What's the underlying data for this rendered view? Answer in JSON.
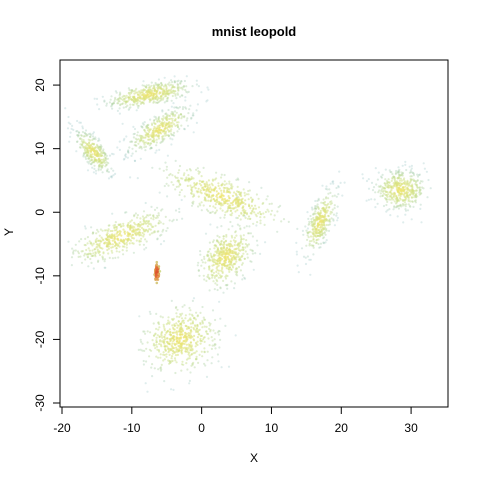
{
  "chart_data": {
    "type": "scatter",
    "title": "mnist leopold",
    "xlabel": "X",
    "ylabel": "Y",
    "xlim": [
      -20,
      35
    ],
    "ylim": [
      -30,
      23
    ],
    "x_ticks": [
      -20,
      -10,
      0,
      10,
      20,
      30
    ],
    "y_ticks": [
      -30,
      -20,
      -10,
      0,
      10,
      20
    ],
    "x_tick_labels": [
      "-20",
      "-10",
      "0",
      "10",
      "20",
      "30"
    ],
    "y_tick_labels": [
      "-30",
      "-20",
      "-10",
      "0",
      "10",
      "20"
    ],
    "grid": false,
    "legend": "none",
    "colors": {
      "low_density": "#7fb8b8",
      "mid_density": "#c9e08a",
      "high_density": "#f0e570",
      "peak_density": "#d94a2a"
    },
    "clusters": [
      {
        "cx": -7.5,
        "cy": 18.5,
        "sx": 5.5,
        "sy": 1.6,
        "angle": 12,
        "n": 420,
        "core": 0.7
      },
      {
        "cx": -6.0,
        "cy": 13.0,
        "sx": 5.0,
        "sy": 1.9,
        "angle": 35,
        "n": 360,
        "core": 0.75
      },
      {
        "cx": -15.5,
        "cy": 9.5,
        "sx": 3.8,
        "sy": 1.6,
        "angle": -55,
        "n": 300,
        "core": 0.8
      },
      {
        "cx": 3.0,
        "cy": 2.5,
        "sx": 7.5,
        "sy": 2.5,
        "angle": -25,
        "n": 460,
        "core": 0.55
      },
      {
        "cx": -11.5,
        "cy": -3.8,
        "sx": 6.5,
        "sy": 2.4,
        "angle": 25,
        "n": 440,
        "core": 0.6
      },
      {
        "cx": 3.5,
        "cy": -7.0,
        "sx": 4.5,
        "sy": 2.8,
        "angle": 60,
        "n": 420,
        "core": 0.6
      },
      {
        "cx": 17.0,
        "cy": -1.5,
        "sx": 5.0,
        "sy": 1.6,
        "angle": 70,
        "n": 320,
        "core": 0.75
      },
      {
        "cx": 28.5,
        "cy": 3.5,
        "sx": 3.3,
        "sy": 2.7,
        "angle": 0,
        "n": 420,
        "core": 0.7
      },
      {
        "cx": -3.0,
        "cy": -20.0,
        "sx": 4.5,
        "sy": 4.0,
        "angle": 40,
        "n": 520,
        "core": 0.55
      },
      {
        "cx": -6.4,
        "cy": -9.5,
        "sx": 0.25,
        "sy": 1.1,
        "angle": 0,
        "n": 80,
        "core": 2.0
      }
    ]
  }
}
